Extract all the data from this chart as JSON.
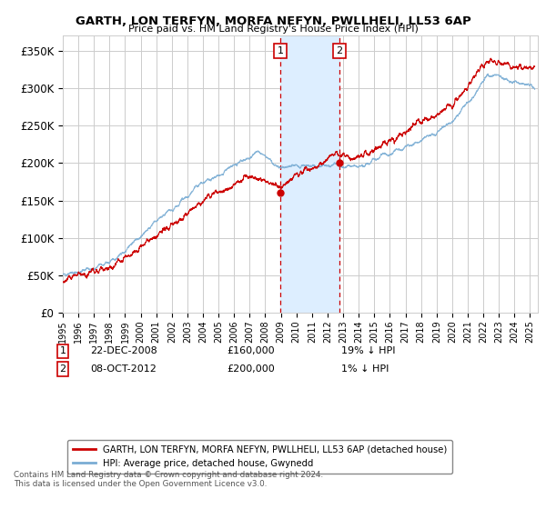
{
  "title": "GARTH, LON TERFYN, MORFA NEFYN, PWLLHELI, LL53 6AP",
  "subtitle": "Price paid vs. HM Land Registry's House Price Index (HPI)",
  "ylabel_ticks": [
    "£0",
    "£50K",
    "£100K",
    "£150K",
    "£200K",
    "£250K",
    "£300K",
    "£350K"
  ],
  "ytick_values": [
    0,
    50000,
    100000,
    150000,
    200000,
    250000,
    300000,
    350000
  ],
  "ylim": [
    0,
    370000
  ],
  "xlim_start": 1995.0,
  "xlim_end": 2025.5,
  "sale1_x": 2008.97,
  "sale1_y": 160000,
  "sale2_x": 2012.77,
  "sale2_y": 200000,
  "legend_line1": "GARTH, LON TERFYN, MORFA NEFYN, PWLLHELI, LL53 6AP (detached house)",
  "legend_line2": "HPI: Average price, detached house, Gwynedd",
  "annotation1_date": "22-DEC-2008",
  "annotation1_price": "£160,000",
  "annotation1_hpi": "19% ↓ HPI",
  "annotation2_date": "08-OCT-2012",
  "annotation2_price": "£200,000",
  "annotation2_hpi": "1% ↓ HPI",
  "footer": "Contains HM Land Registry data © Crown copyright and database right 2024.\nThis data is licensed under the Open Government Licence v3.0.",
  "red_color": "#cc0000",
  "blue_color": "#7aadd4",
  "shade_color": "#ddeeff",
  "grid_color": "#cccccc",
  "background_color": "#ffffff"
}
